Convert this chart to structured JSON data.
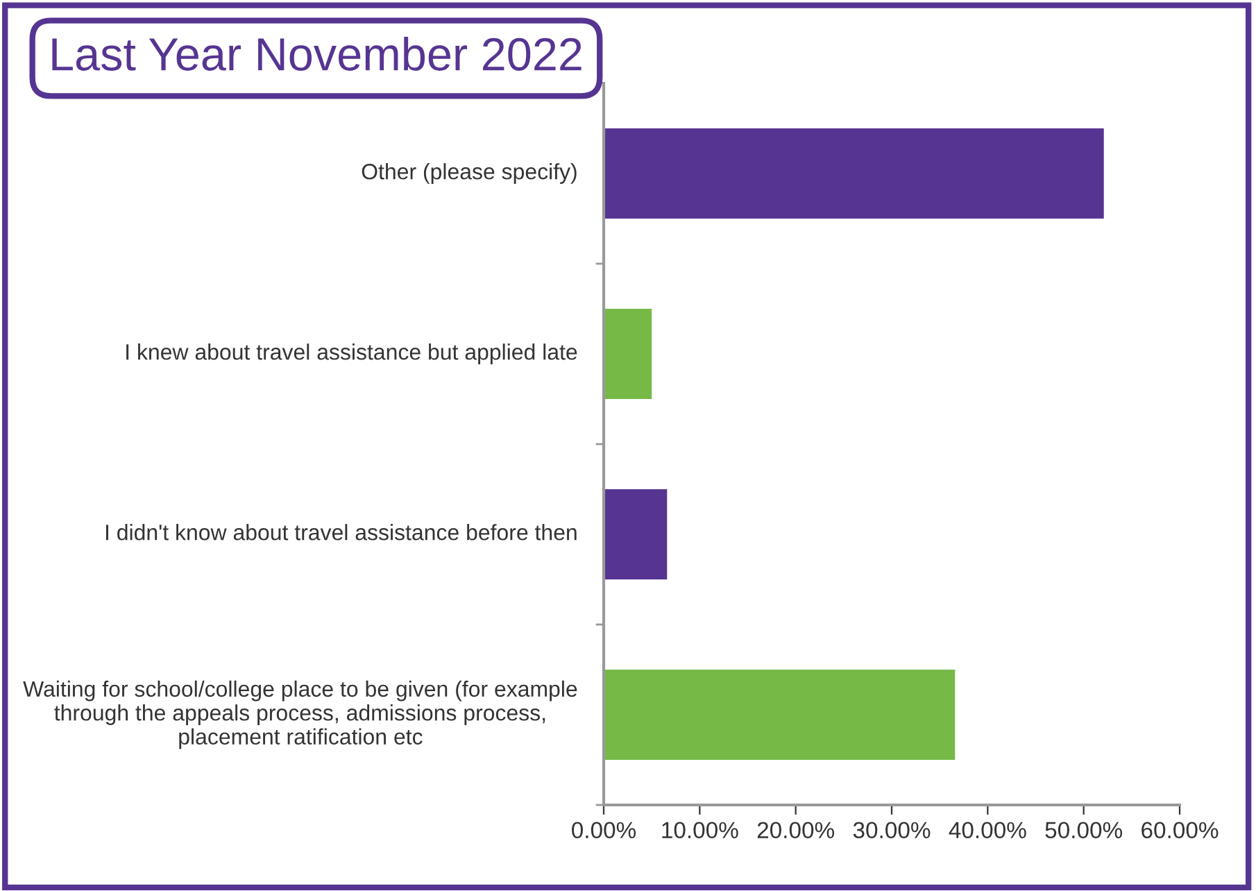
{
  "chart_data": {
    "type": "bar",
    "orientation": "horizontal",
    "title": "Last Year November 2022",
    "categories": [
      "Other (please specify)",
      "I knew about travel assistance but applied late",
      "I didn't know about travel assistance before then",
      "Waiting for school/college place to be given (for example through the appeals process, admissions process, placement ratification etc"
    ],
    "values": [
      52.1,
      5.0,
      6.6,
      36.6
    ],
    "colors": [
      "#563592",
      "#76b947",
      "#563592",
      "#76b947"
    ],
    "xlim": [
      0,
      60
    ],
    "xticks": [
      {
        "value": 0,
        "label": "0.00%"
      },
      {
        "value": 10,
        "label": "10.00%"
      },
      {
        "value": 20,
        "label": "20.00%"
      },
      {
        "value": 30,
        "label": "30.00%"
      },
      {
        "value": 40,
        "label": "40.00%"
      },
      {
        "value": 50,
        "label": "50.00%"
      },
      {
        "value": 60,
        "label": "60.00%"
      }
    ],
    "grid": false,
    "legend": false
  }
}
